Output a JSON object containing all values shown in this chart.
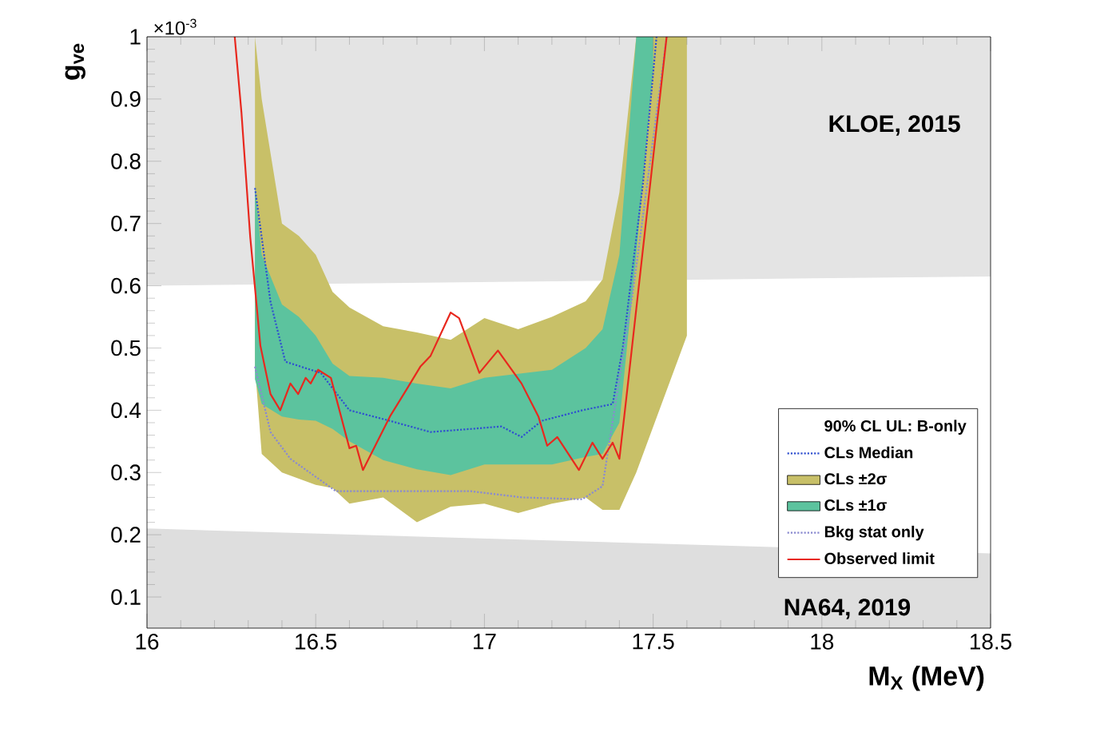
{
  "chart_data": {
    "type": "line",
    "xlabel": "M$_{X}$ (MeV)",
    "ylabel": "g$_{ve}$",
    "xlim": [
      16,
      18.5
    ],
    "ylim": [
      0.05,
      1
    ],
    "xticks": [
      16,
      16.5,
      17,
      17.5,
      18,
      18.5
    ],
    "yticks": [
      0.1,
      0.2,
      0.3,
      0.4,
      0.5,
      0.6,
      0.7,
      0.8,
      0.9,
      1
    ],
    "legend": "bottom right",
    "legend_title": "90% CL UL: B-only",
    "annotations": [
      "×10$^{-3}$",
      "KLOE, 2015",
      "NA64, 2019"
    ],
    "series": [
      {
        "name": "CLs Median",
        "type": "line",
        "color": "#3050d0",
        "line_style": "dotted",
        "x": [
          16.32,
          16.366,
          16.41,
          16.515,
          16.6,
          16.72,
          16.84,
          16.96,
          17.05,
          17.11,
          17.17,
          17.29,
          17.38,
          17.41,
          17.47,
          17.51
        ],
        "values": [
          0.757,
          0.574,
          0.478,
          0.46,
          0.4,
          0.383,
          0.365,
          0.37,
          0.374,
          0.357,
          0.383,
          0.4,
          0.41,
          0.5,
          0.765,
          1.0
        ]
      },
      {
        "name": "CLs ±2σ",
        "type": "area",
        "color": "#c8c068",
        "x": [
          16.32,
          16.34,
          16.4,
          16.45,
          16.5,
          16.55,
          16.6,
          16.7,
          16.8,
          16.9,
          17.0,
          17.1,
          17.2,
          17.3,
          17.35,
          17.4,
          17.45,
          17.6
        ],
        "values": [
          null,
          null,
          null,
          null,
          null,
          null,
          null,
          null,
          null,
          null,
          null,
          null,
          null,
          null,
          null,
          null,
          null,
          null
        ],
        "lower": [
          0.47,
          0.33,
          0.3,
          0.29,
          0.28,
          0.275,
          0.25,
          0.26,
          0.22,
          0.245,
          0.25,
          0.235,
          0.25,
          0.26,
          0.24,
          0.24,
          0.3,
          0.52
        ],
        "upper": [
          1.0,
          0.9,
          0.7,
          0.68,
          0.65,
          0.59,
          0.565,
          0.535,
          0.525,
          0.513,
          0.548,
          0.53,
          0.55,
          0.575,
          0.61,
          0.75,
          1.0,
          1.0
        ]
      },
      {
        "name": "CLs ±1σ",
        "type": "area",
        "color": "#5cc39e",
        "x": [
          16.32,
          16.34,
          16.4,
          16.45,
          16.5,
          16.55,
          16.6,
          16.7,
          16.8,
          16.9,
          17.0,
          17.2,
          17.3,
          17.35,
          17.4,
          17.45,
          17.5
        ],
        "values": [
          null,
          null,
          null,
          null,
          null,
          null,
          null,
          null,
          null,
          null,
          null,
          null,
          null,
          null,
          null,
          null,
          null
        ],
        "lower": [
          0.45,
          0.41,
          0.39,
          0.385,
          0.383,
          0.37,
          0.35,
          0.32,
          0.305,
          0.296,
          0.313,
          0.313,
          0.325,
          0.33,
          0.38,
          0.65,
          0.95
        ],
        "upper": [
          0.76,
          0.65,
          0.57,
          0.55,
          0.52,
          0.475,
          0.455,
          0.452,
          0.443,
          0.435,
          0.452,
          0.465,
          0.5,
          0.53,
          0.65,
          1.0,
          1.0
        ]
      },
      {
        "name": "Bkg stat only",
        "type": "line",
        "color": "#8a8ad0",
        "line_style": "dotted",
        "x": [
          16.32,
          16.366,
          16.425,
          16.56,
          16.66,
          16.96,
          17.11,
          17.29,
          17.35,
          17.44,
          17.54
        ],
        "values": [
          0.47,
          0.365,
          0.322,
          0.27,
          0.27,
          0.27,
          0.26,
          0.257,
          0.278,
          0.59,
          1.0
        ]
      },
      {
        "name": "Observed limit",
        "type": "line",
        "color": "#e8281e",
        "line_style": "solid",
        "x": [
          16.26,
          16.28,
          16.306,
          16.336,
          16.366,
          16.395,
          16.425,
          16.448,
          16.47,
          16.485,
          16.507,
          16.545,
          16.6,
          16.62,
          16.64,
          16.72,
          16.78,
          16.81,
          16.84,
          16.9,
          16.925,
          16.985,
          17.04,
          17.11,
          17.16,
          17.186,
          17.216,
          17.28,
          17.32,
          17.35,
          17.38,
          17.4,
          17.42,
          17.54
        ],
        "values": [
          1.0,
          0.878,
          0.678,
          0.504,
          0.426,
          0.4,
          0.443,
          0.426,
          0.452,
          0.443,
          0.465,
          0.452,
          0.339,
          0.343,
          0.304,
          0.39,
          0.443,
          0.47,
          0.487,
          0.557,
          0.548,
          0.46,
          0.496,
          0.443,
          0.39,
          0.343,
          0.357,
          0.304,
          0.348,
          0.322,
          0.348,
          0.322,
          0.417,
          1.0
        ]
      },
      {
        "type": "area",
        "color": "#e4e4e4",
        "x": [
          16,
          18.5
        ],
        "values": [
          null,
          null
        ],
        "lower": [
          0.6,
          0.615
        ],
        "upper": [
          1,
          1
        ]
      },
      {
        "type": "area",
        "color": "#dedede",
        "x": [
          16,
          18.5
        ],
        "values": [
          null,
          null
        ],
        "lower": [
          0.05,
          0.05
        ],
        "upper": [
          0.21,
          0.17
        ]
      }
    ]
  }
}
